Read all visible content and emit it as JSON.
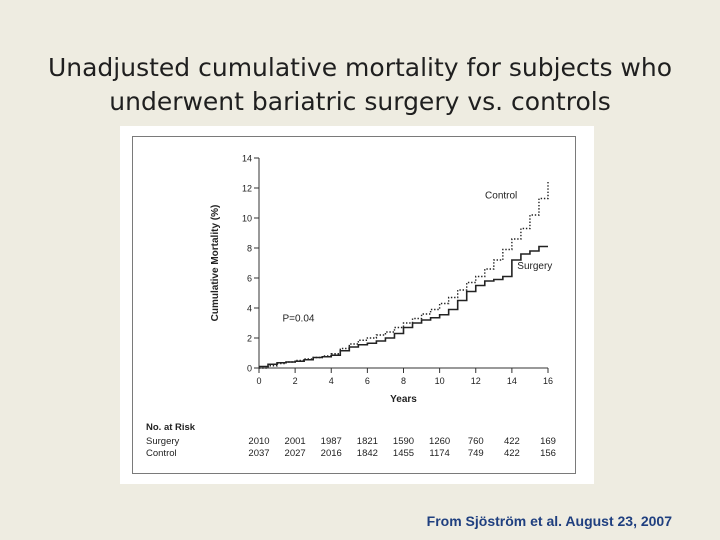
{
  "slide": {
    "title_line1": "Unadjusted cumulative mortality for subjects who",
    "title_line2": "underwent bariatric surgery vs. controls",
    "citation": "From Sjöström et al. August 23, 2007"
  },
  "chart_data": {
    "type": "line",
    "title": "",
    "xlabel": "Years",
    "ylabel": "Cumulative Mortality (%)",
    "xlim": [
      0,
      16
    ],
    "ylim": [
      0,
      14
    ],
    "x_ticks": [
      0,
      2,
      4,
      6,
      8,
      10,
      12,
      14,
      16
    ],
    "y_ticks": [
      0,
      2,
      4,
      6,
      8,
      10,
      12,
      14
    ],
    "annotation": "P=0.04",
    "series": [
      {
        "name": "Control",
        "style": "dotted",
        "x": [
          0,
          0.5,
          1,
          1.5,
          2,
          2.5,
          3,
          3.5,
          4,
          4.5,
          5,
          5.5,
          6,
          6.5,
          7,
          7.5,
          8,
          8.5,
          9,
          9.5,
          10,
          10.5,
          11,
          11.5,
          12,
          12.5,
          13,
          13.5,
          14,
          14.5,
          15,
          15.5,
          16
        ],
        "y": [
          0,
          0.15,
          0.3,
          0.4,
          0.5,
          0.6,
          0.7,
          0.8,
          0.95,
          1.3,
          1.6,
          1.85,
          2.0,
          2.2,
          2.4,
          2.7,
          3.0,
          3.3,
          3.6,
          3.9,
          4.3,
          4.7,
          5.2,
          5.7,
          6.1,
          6.6,
          7.2,
          7.9,
          8.6,
          9.3,
          10.2,
          11.3,
          12.5
        ]
      },
      {
        "name": "Surgery",
        "style": "solid",
        "x": [
          0,
          0.5,
          1,
          1.5,
          2,
          2.5,
          3,
          3.5,
          4,
          4.5,
          5,
          5.5,
          6,
          6.5,
          7,
          7.5,
          8,
          8.5,
          9,
          9.5,
          10,
          10.5,
          11,
          11.5,
          12,
          12.5,
          13,
          13.5,
          14,
          14.5,
          15,
          15.5,
          16
        ],
        "y": [
          0.1,
          0.25,
          0.35,
          0.4,
          0.45,
          0.55,
          0.7,
          0.75,
          0.85,
          1.15,
          1.4,
          1.55,
          1.65,
          1.8,
          2.0,
          2.3,
          2.7,
          3.0,
          3.2,
          3.35,
          3.55,
          3.9,
          4.5,
          5.1,
          5.5,
          5.8,
          5.9,
          6.1,
          7.2,
          7.6,
          7.8,
          8.1,
          8.1
        ]
      }
    ],
    "at_risk": {
      "header": "No. at Risk",
      "rows": [
        {
          "label": "Surgery",
          "values": [
            "2010",
            "2001",
            "1987",
            "1821",
            "1590",
            "1260",
            "760",
            "422",
            "169"
          ]
        },
        {
          "label": "Control",
          "values": [
            "2037",
            "2027",
            "2016",
            "1842",
            "1455",
            "1174",
            "749",
            "422",
            "156"
          ]
        }
      ]
    },
    "colors": {
      "line": "#222222",
      "axis": "#333333"
    }
  }
}
